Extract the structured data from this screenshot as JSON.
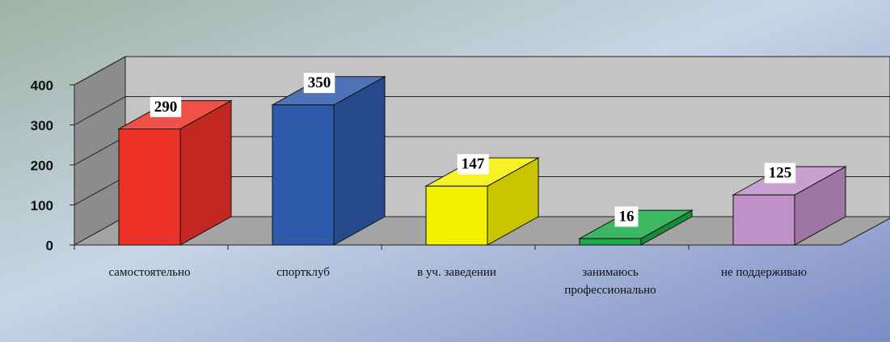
{
  "chart_data": {
    "type": "bar3d",
    "categories": [
      "самостоятельно",
      "спортклуб",
      "в уч. заведении",
      "занимаюсь\nпрофессионально",
      "не  поддерживаю"
    ],
    "values": [
      290,
      350,
      147,
      16,
      125
    ],
    "colors": [
      "#ec3128",
      "#2f5aac",
      "#f4f000",
      "#1caa4a",
      "#c090c8"
    ],
    "ylim": [
      0,
      400
    ],
    "yticks": [
      0,
      100,
      200,
      300,
      400
    ],
    "grid": true
  }
}
